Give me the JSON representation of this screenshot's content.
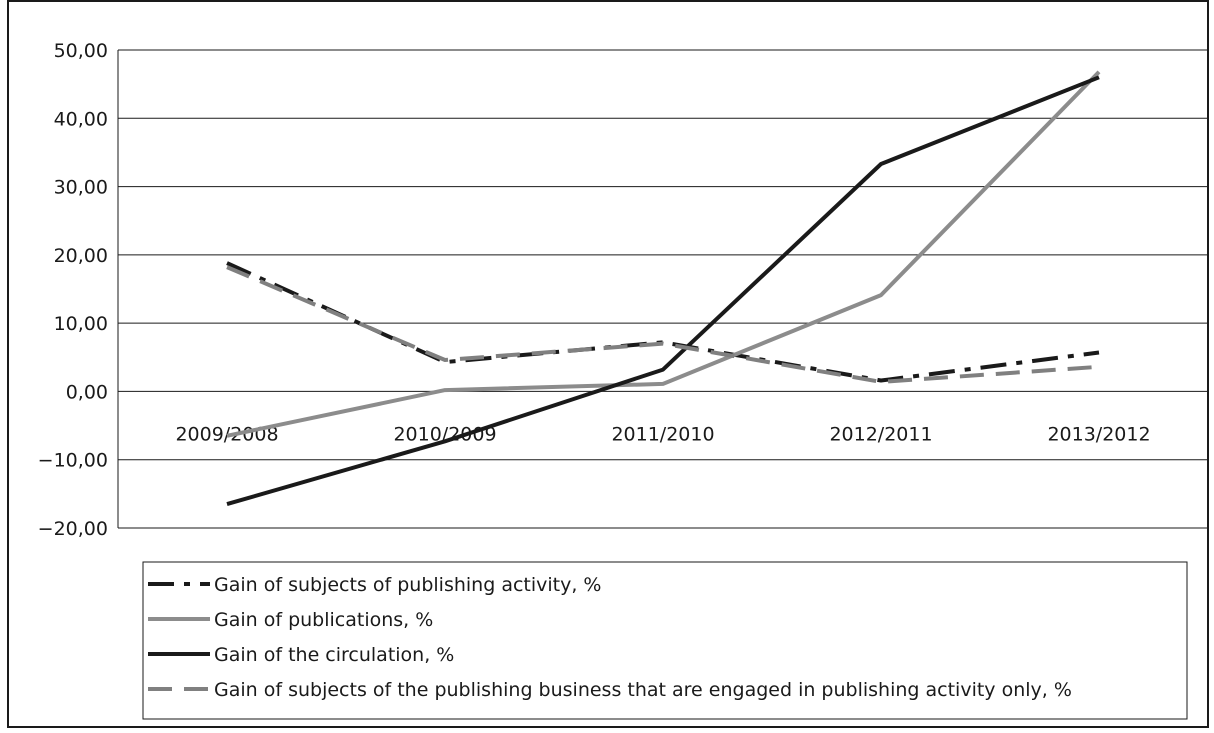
{
  "chart_data": {
    "type": "line",
    "categories": [
      "2009/2008",
      "2010/2009",
      "2011/2010",
      "2012/2011",
      "2013/2012"
    ],
    "ylim": [
      -20,
      50
    ],
    "yticks": [
      50,
      40,
      30,
      20,
      10,
      0,
      -10,
      -20
    ],
    "ytick_labels": [
      "50,00",
      "40,00",
      "30,00",
      "20,00",
      "10,00",
      "0,00",
      "−10,00",
      "−20,00"
    ],
    "grid": true,
    "legend_position": "bottom",
    "series": [
      {
        "name": "Gain of subjects of publishing activity, %",
        "values": [
          18.8,
          4.3,
          7.2,
          1.6,
          5.7
        ],
        "color": "#1a1a1a",
        "style": "dash-dot"
      },
      {
        "name": "Gain of publications, %",
        "values": [
          -6.5,
          0.2,
          1.1,
          14.1,
          46.8
        ],
        "color": "#8c8c8c",
        "style": "solid"
      },
      {
        "name": "Gain of the circulation, %",
        "values": [
          -16.5,
          -7.3,
          3.2,
          33.3,
          46.0
        ],
        "color": "#1a1a1a",
        "style": "solid"
      },
      {
        "name": "Gain of subjects of the publishing business that are engaged in publishing activity only, %",
        "values": [
          18.2,
          4.6,
          7.0,
          1.4,
          3.6
        ],
        "color": "#808080",
        "style": "dash"
      }
    ]
  }
}
